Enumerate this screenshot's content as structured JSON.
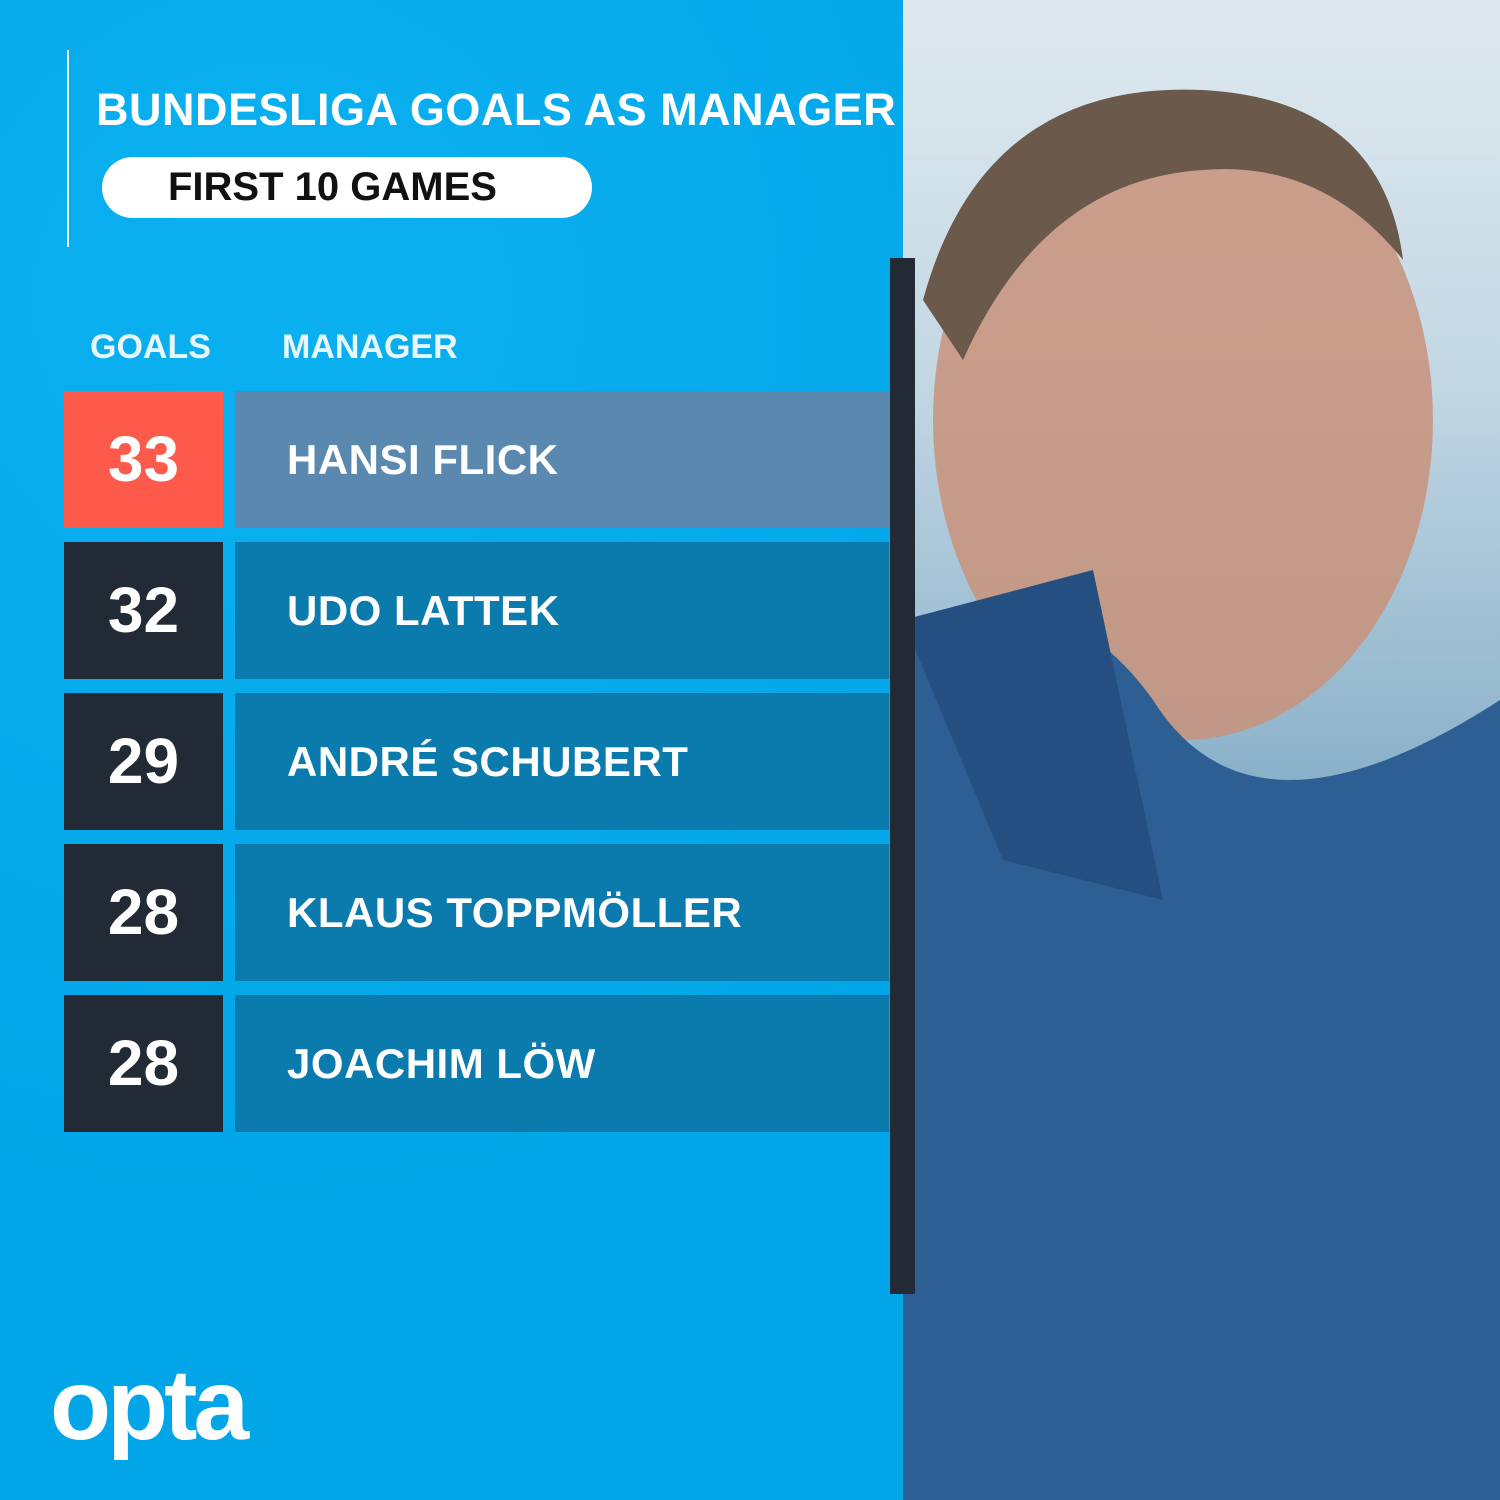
{
  "title": "BUNDESLIGA GOALS AS MANAGER",
  "subtitle": "FIRST 10 GAMES",
  "logo": "opta",
  "colors": {
    "background": "#03a9ec",
    "highlight_goal": "#fe5a4b",
    "highlight_name": "#5a88ae",
    "goal_box": "#222b35",
    "name_box": "#0b7aad"
  },
  "chart_data": {
    "type": "table",
    "columns": [
      "GOALS",
      "MANAGER"
    ],
    "rows": [
      {
        "goals": 33,
        "manager": "HANSI FLICK",
        "highlight": true
      },
      {
        "goals": 32,
        "manager": "UDO LATTEK"
      },
      {
        "goals": 29,
        "manager": "ANDRÉ SCHUBERT"
      },
      {
        "goals": 28,
        "manager": "KLAUS TOPPMÖLLER"
      },
      {
        "goals": 28,
        "manager": "JOACHIM LÖW"
      }
    ]
  }
}
